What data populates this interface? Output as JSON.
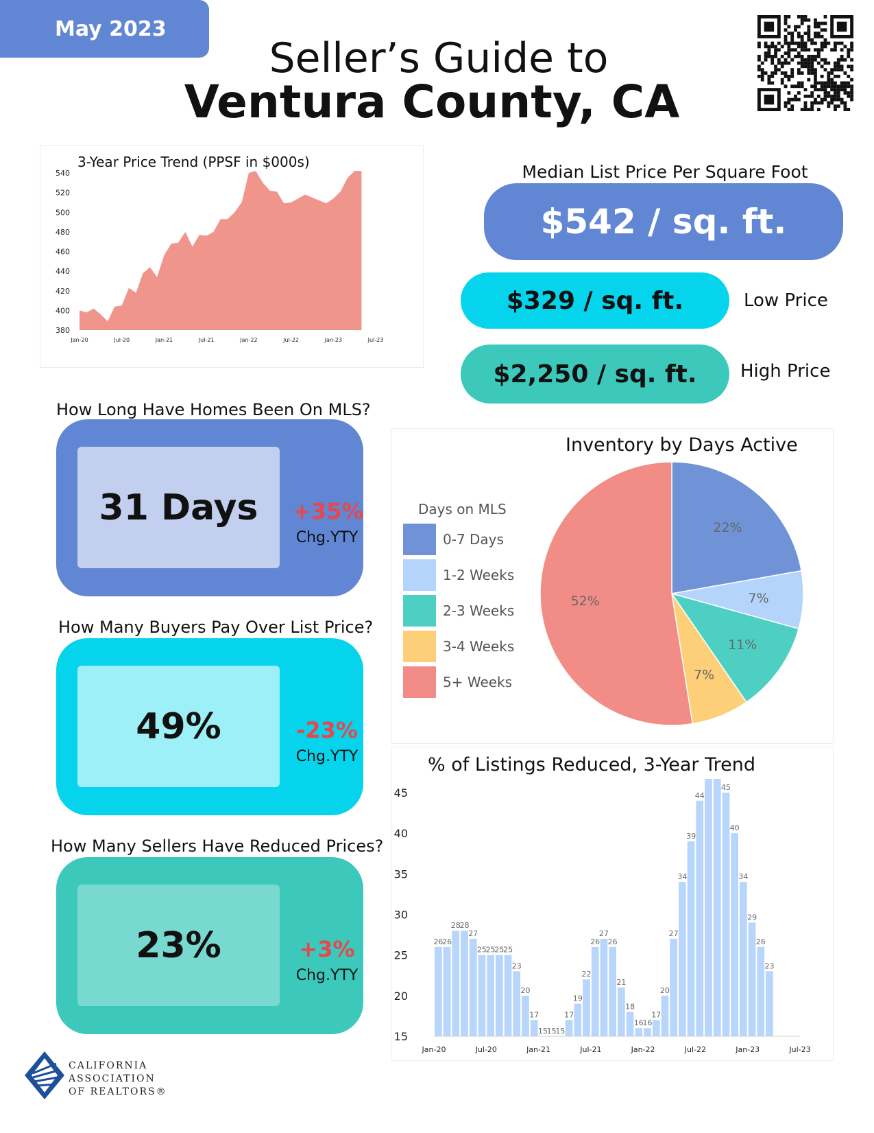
{
  "header": {
    "month": "May 2023",
    "title_line1": "Seller’s Guide to",
    "title_line2": "Ventura County, CA"
  },
  "qr_icon": "qr-code-icon",
  "price_trend": {
    "title": "3-Year Price Trend (PPSF in $000s)"
  },
  "median_list_price": {
    "label": "Median List Price Per Square Foot",
    "median": "$542 / sq. ft.",
    "low": "$329 / sq. ft.",
    "low_label": "Low Price",
    "high": "$2,250 / sq. ft.",
    "high_label": "High Price"
  },
  "stats": {
    "days_on_mls": {
      "question": "How Long Have Homes Been On MLS?",
      "value": "31 Days",
      "change": "+35%",
      "change_label": "Chg.YTY"
    },
    "over_list": {
      "question": "How Many Buyers Pay Over List Price?",
      "value": "49%",
      "change": "-23%",
      "change_label": "Chg.YTY"
    },
    "reduced": {
      "question": "How Many Sellers Have Reduced Prices?",
      "value": "23%",
      "change": "+3%",
      "change_label": "Chg.YTY"
    }
  },
  "inventory": {
    "title": "Inventory by Days Active",
    "legend_title": "Days on MLS"
  },
  "reduced_trend": {
    "title": "% of Listings Reduced, 3-Year Trend"
  },
  "footer": {
    "org_line1": "CALIFORNIA",
    "org_line2": "ASSOCIATION",
    "org_line3": "OF REALTORS®"
  },
  "colors": {
    "blue": "#6186d4",
    "cyan": "#06d4ec",
    "teal": "#3cc9bb",
    "salmon": "#f0958c",
    "light_blue": "#b8d5fb",
    "red_change": "#e5484d"
  },
  "chart_data": [
    {
      "type": "area",
      "title": "3-Year Price Trend (PPSF in $000s)",
      "x_tick_labels": [
        "Jan-20",
        "Jul-20",
        "Jan-21",
        "Jul-21",
        "Jan-22",
        "Jul-22",
        "Jan-23",
        "Jul-23"
      ],
      "y_tick_labels": [
        "380",
        "400",
        "420",
        "440",
        "460",
        "480",
        "500",
        "520",
        "540"
      ],
      "ylim": [
        380,
        540
      ],
      "x": [
        "Jan-20",
        "Feb-20",
        "Mar-20",
        "Apr-20",
        "May-20",
        "Jun-20",
        "Jul-20",
        "Aug-20",
        "Sep-20",
        "Oct-20",
        "Nov-20",
        "Dec-20",
        "Jan-21",
        "Feb-21",
        "Mar-21",
        "Apr-21",
        "May-21",
        "Jun-21",
        "Jul-21",
        "Aug-21",
        "Sep-21",
        "Oct-21",
        "Nov-21",
        "Dec-21",
        "Jan-22",
        "Feb-22",
        "Mar-22",
        "Apr-22",
        "May-22",
        "Jun-22",
        "Jul-22",
        "Aug-22",
        "Sep-22",
        "Oct-22",
        "Nov-22",
        "Dec-22",
        "Jan-23",
        "Feb-23",
        "Mar-23",
        "Apr-23",
        "May-23"
      ],
      "values": [
        400,
        398,
        402,
        396,
        389,
        404,
        405,
        423,
        418,
        438,
        444,
        434,
        456,
        468,
        469,
        480,
        465,
        477,
        476,
        480,
        493,
        493,
        500,
        510,
        540,
        542,
        530,
        522,
        521,
        509,
        510,
        514,
        518,
        515,
        512,
        509,
        514,
        521,
        535,
        542,
        542
      ],
      "color": "#f0958c"
    },
    {
      "type": "pie",
      "title": "Inventory by Days Active",
      "legend_title": "Days on MLS",
      "legend_position": "left",
      "slices": [
        {
          "name": "0-7 Days",
          "value": 22,
          "label": "22%",
          "color": "#6f93d6"
        },
        {
          "name": "1-2 Weeks",
          "value": 7,
          "label": "7%",
          "color": "#b5d4fb"
        },
        {
          "name": "2-3 Weeks",
          "value": 11,
          "label": "11%",
          "color": "#4ecfc3"
        },
        {
          "name": "3-4 Weeks",
          "value": 7,
          "label": "7%",
          "color": "#fecf79"
        },
        {
          "name": "5+ Weeks",
          "value": 52,
          "label": "52%",
          "color": "#f18d86"
        }
      ]
    },
    {
      "type": "bar",
      "title": "% of Listings Reduced, 3-Year Trend",
      "x_tick_labels": [
        "Jan-20",
        "Jul-20",
        "Jan-21",
        "Jul-21",
        "Jan-22",
        "Jul-22",
        "Jan-23",
        "Jul-23"
      ],
      "y_tick_labels": [
        "15",
        "20",
        "25",
        "30",
        "35",
        "40",
        "45"
      ],
      "ylim": [
        15,
        45
      ],
      "values": [
        26,
        26,
        28,
        28,
        27,
        25,
        25,
        25,
        25,
        23,
        20,
        17,
        15,
        15,
        15,
        17,
        19,
        22,
        26,
        27,
        26,
        21,
        18,
        16,
        16,
        17,
        20,
        27,
        34,
        39,
        44,
        47,
        47,
        45,
        40,
        34,
        29,
        26,
        23
      ],
      "color": "#b8d5fb"
    }
  ]
}
